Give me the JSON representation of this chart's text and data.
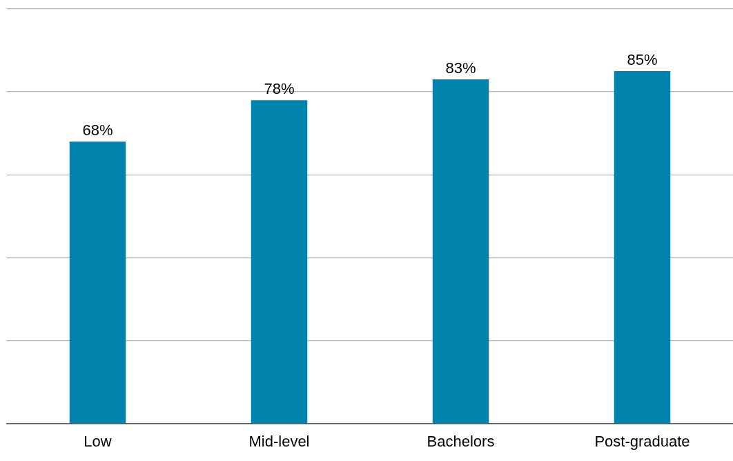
{
  "chart_data": {
    "type": "bar",
    "categories": [
      "Low",
      "Mid-level",
      "Bachelors",
      "Post-graduate"
    ],
    "values": [
      68,
      78,
      83,
      85
    ],
    "color": "#0083ad",
    "value_labels": [
      "68%",
      "78%",
      "83%",
      "85%"
    ],
    "ylim": [
      0,
      100
    ],
    "yticks": [
      {
        "value": 0,
        "label": null
      },
      {
        "value": 20,
        "label": null
      },
      {
        "value": 40,
        "label": null
      },
      {
        "value": 60,
        "label": null
      },
      {
        "value": 80,
        "label": null
      },
      {
        "value": 100,
        "label": null
      }
    ],
    "grid": "y",
    "tick_labels": "x",
    "legend": false
  }
}
